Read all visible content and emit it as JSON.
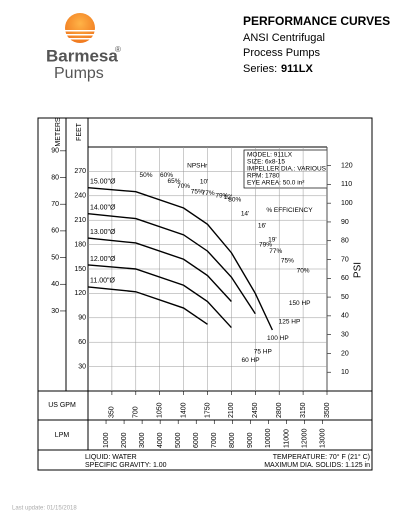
{
  "header": {
    "brand": "Barmesa",
    "registered": "®",
    "sub": "Pumps",
    "title": "PERFORMANCE CURVES",
    "line1": "ANSI Centrifugal",
    "line2": "Process Pumps",
    "series_label": "Series:",
    "series": "911LX"
  },
  "chart_data": {
    "type": "line",
    "x_label": "US GPM",
    "x2_label": "LPM",
    "y_label": "FEET",
    "y2_label": "METERS",
    "y3_label": "PSI",
    "x": [
      0,
      700,
      1400,
      1750,
      2100,
      2450,
      2700
    ],
    "xlim": [
      0,
      3500
    ],
    "xticks": [
      350,
      700,
      1050,
      1400,
      1750,
      2100,
      2450,
      2800,
      3150,
      3500
    ],
    "x2lim": [
      0,
      13249
    ],
    "x2ticks": [
      1000,
      2000,
      3000,
      4000,
      5000,
      6000,
      7000,
      8000,
      9000,
      10000,
      11000,
      12000,
      13000
    ],
    "ylim": [
      0,
      300
    ],
    "yticks": [
      30,
      60,
      90,
      120,
      150,
      180,
      210,
      240,
      270
    ],
    "y2lim": [
      0,
      91.44
    ],
    "y2ticks": [
      30,
      40,
      50,
      60,
      70,
      80,
      90
    ],
    "y3lim": [
      0,
      129.9
    ],
    "y3ticks": [
      10,
      20,
      30,
      40,
      50,
      60,
      70,
      80,
      90,
      100,
      110,
      120
    ],
    "grid": true,
    "series": [
      {
        "name": "15.00\"Ø",
        "color": "#000000",
        "values": [
          250,
          245,
          225,
          205,
          170,
          120,
          75
        ]
      },
      {
        "name": "14.00\"Ø",
        "color": "#000000",
        "values": [
          218,
          212,
          192,
          172,
          140,
          95,
          null
        ]
      },
      {
        "name": "13.00\"Ø",
        "color": "#000000",
        "values": [
          188,
          182,
          162,
          142,
          110,
          null,
          null
        ]
      },
      {
        "name": "12.00\"Ø",
        "color": "#000000",
        "values": [
          155,
          150,
          130,
          110,
          78,
          null,
          null
        ]
      },
      {
        "name": "11.00\"Ø",
        "color": "#000000",
        "values": [
          128,
          122,
          102,
          82,
          null,
          null,
          null
        ]
      }
    ],
    "annotations": [
      {
        "text": "NPSHr",
        "x": 1600,
        "y": 277
      },
      {
        "text": "10'",
        "x": 1700,
        "y": 257
      },
      {
        "text": "12'",
        "x": 2050,
        "y": 238
      },
      {
        "text": "14'",
        "x": 2300,
        "y": 218
      },
      {
        "text": "16'",
        "x": 2550,
        "y": 203
      },
      {
        "text": "19'",
        "x": 2700,
        "y": 186
      },
      {
        "text": "% EFFICIENCY",
        "x": 2950,
        "y": 222
      },
      {
        "text": "50%",
        "x": 850,
        "y": 265
      },
      {
        "text": "60%",
        "x": 1150,
        "y": 265
      },
      {
        "text": "65%",
        "x": 1260,
        "y": 258
      },
      {
        "text": "70%",
        "x": 1400,
        "y": 252
      },
      {
        "text": "75%",
        "x": 1600,
        "y": 245
      },
      {
        "text": "77%",
        "x": 1760,
        "y": 243
      },
      {
        "text": "79%",
        "x": 1960,
        "y": 240
      },
      {
        "text": "80%",
        "x": 2150,
        "y": 235
      },
      {
        "text": "79%",
        "x": 2600,
        "y": 180
      },
      {
        "text": "77%",
        "x": 2750,
        "y": 172
      },
      {
        "text": "75%",
        "x": 2920,
        "y": 160
      },
      {
        "text": "70%",
        "x": 3150,
        "y": 148
      },
      {
        "text": "150 HP",
        "x": 3100,
        "y": 108
      },
      {
        "text": "125 HP",
        "x": 2950,
        "y": 85
      },
      {
        "text": "100 HP",
        "x": 2780,
        "y": 65
      },
      {
        "text": "75 HP",
        "x": 2560,
        "y": 48
      },
      {
        "text": "60 HP",
        "x": 2380,
        "y": 38
      }
    ],
    "model_box": [
      "MODEL: 911LX",
      "SIZE: 6x8-15",
      "IMPELLER DIA.: VARIOUS",
      "RPM: 1780",
      "EYE AREA: 50.0 in²"
    ]
  },
  "footer": {
    "liquid": "LIQUID: WATER",
    "gravity": "SPECIFIC GRAVITY: 1.00",
    "temperature": "TEMPERATURE: 70° F (21° C)",
    "solids": "MAXIMUM DIA. SOLIDS: 1.125 in"
  },
  "last_update": "Last update: 01/15/2018"
}
